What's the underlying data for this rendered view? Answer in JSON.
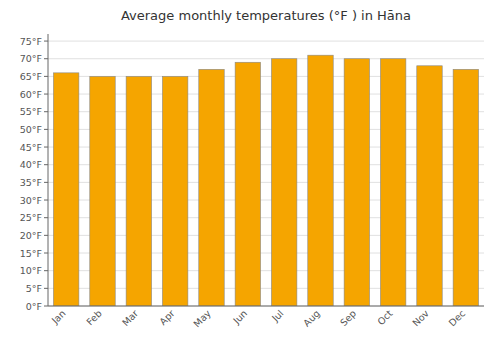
{
  "chart_data": {
    "type": "bar",
    "title": "Average monthly temperatures (°F ) in Hāna",
    "categories": [
      "Jan",
      "Feb",
      "Mar",
      "Apr",
      "May",
      "Jun",
      "Jul",
      "Aug",
      "Sep",
      "Oct",
      "Nov",
      "Dec"
    ],
    "values": [
      66,
      65,
      65,
      65,
      67,
      69,
      70,
      71,
      70,
      70,
      68,
      67
    ],
    "color": "#F5A500",
    "ylim": [
      0,
      77
    ],
    "yticks": [
      {
        "value": 0,
        "label": "0°F"
      },
      {
        "value": 5,
        "label": "5°F"
      },
      {
        "value": 10,
        "label": "10°F"
      },
      {
        "value": 15,
        "label": "15°F"
      },
      {
        "value": 20,
        "label": "20°F"
      },
      {
        "value": 25,
        "label": "25°F"
      },
      {
        "value": 30,
        "label": "30°F"
      },
      {
        "value": 35,
        "label": "35°F"
      },
      {
        "value": 40,
        "label": "40°F"
      },
      {
        "value": 45,
        "label": "45°F"
      },
      {
        "value": 50,
        "label": "50°F"
      },
      {
        "value": 55,
        "label": "55°F"
      },
      {
        "value": 60,
        "label": "60°F"
      },
      {
        "value": 65,
        "label": "65°F"
      },
      {
        "value": 70,
        "label": "70°F"
      },
      {
        "value": 75,
        "label": "75°F"
      }
    ],
    "grid": true
  }
}
